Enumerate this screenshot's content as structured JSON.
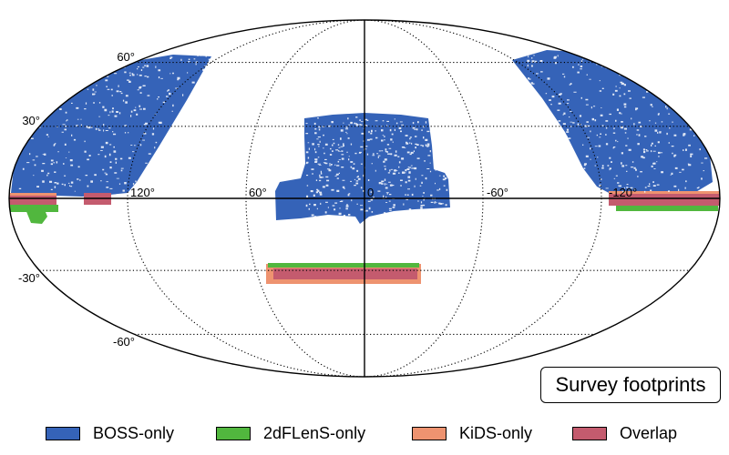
{
  "map": {
    "projection": "mollweide",
    "lat_labels": [
      "60°",
      "30°",
      "-30°",
      "-60°"
    ],
    "lon_labels": [
      "120°",
      "60°",
      "0",
      "-60°",
      "-120°"
    ]
  },
  "title": "Survey footprints",
  "legend": [
    {
      "name": "BOSS-only",
      "color": "#3563b8"
    },
    {
      "name": "2dFLenS-only",
      "color": "#51b73e"
    },
    {
      "name": "KiDS-only",
      "color": "#ee9370"
    },
    {
      "name": "Overlap",
      "color": "#c45b6e"
    }
  ]
}
